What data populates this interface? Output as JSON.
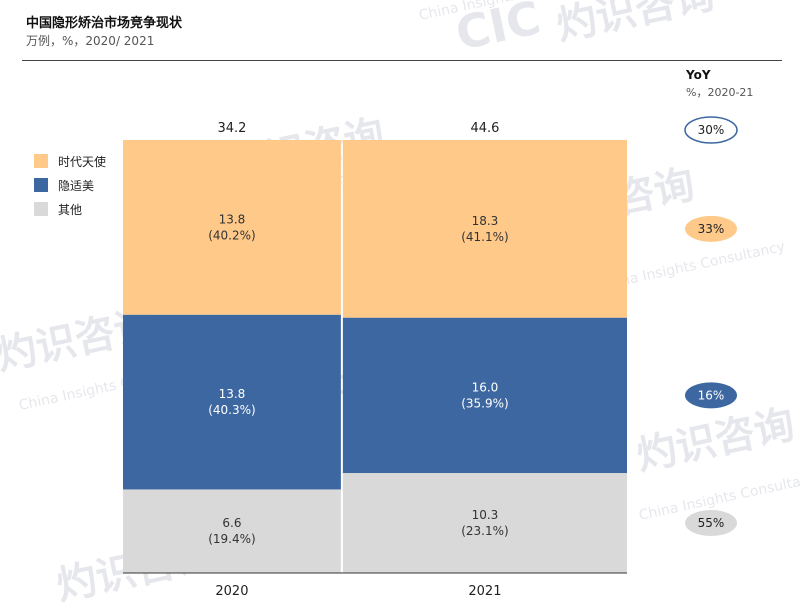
{
  "title": "中国隐形矫治市场竞争现状",
  "subtitle": "万例，%，2020/ 2021",
  "yoy": {
    "label": "YoY",
    "sublabel": "%，2020-21"
  },
  "watermark": {
    "text_cn": "灼识咨询",
    "text_en": "China Insights Consultancy",
    "logo": "CIC"
  },
  "colors": {
    "时代天使": "#FFC98A",
    "隐适美": "#3D67A0",
    "其他": "#D9D9D9",
    "yoy_total_border": "#3D67A0"
  },
  "chart_data": {
    "type": "bar",
    "stacked": true,
    "width_proportional": true,
    "title": "中国隐形矫治市场竞争现状",
    "subtitle": "万例，%，2020/ 2021",
    "categories": [
      "2020",
      "2021"
    ],
    "totals": [
      34.2,
      44.6
    ],
    "series": [
      {
        "name": "其他",
        "values": [
          6.6,
          10.3
        ],
        "shares": [
          "19.4%",
          "23.1%"
        ],
        "yoy": "55%"
      },
      {
        "name": "隐适美",
        "values": [
          13.8,
          16.0
        ],
        "shares": [
          "40.3%",
          "35.9%"
        ],
        "yoy": "16%"
      },
      {
        "name": "时代天使",
        "values": [
          13.8,
          18.3
        ],
        "shares": [
          "40.2%",
          "41.1%"
        ],
        "yoy": "33%"
      }
    ],
    "total_yoy": "30%",
    "legend": [
      "时代天使",
      "隐适美",
      "其他"
    ],
    "legend_position": "left"
  }
}
